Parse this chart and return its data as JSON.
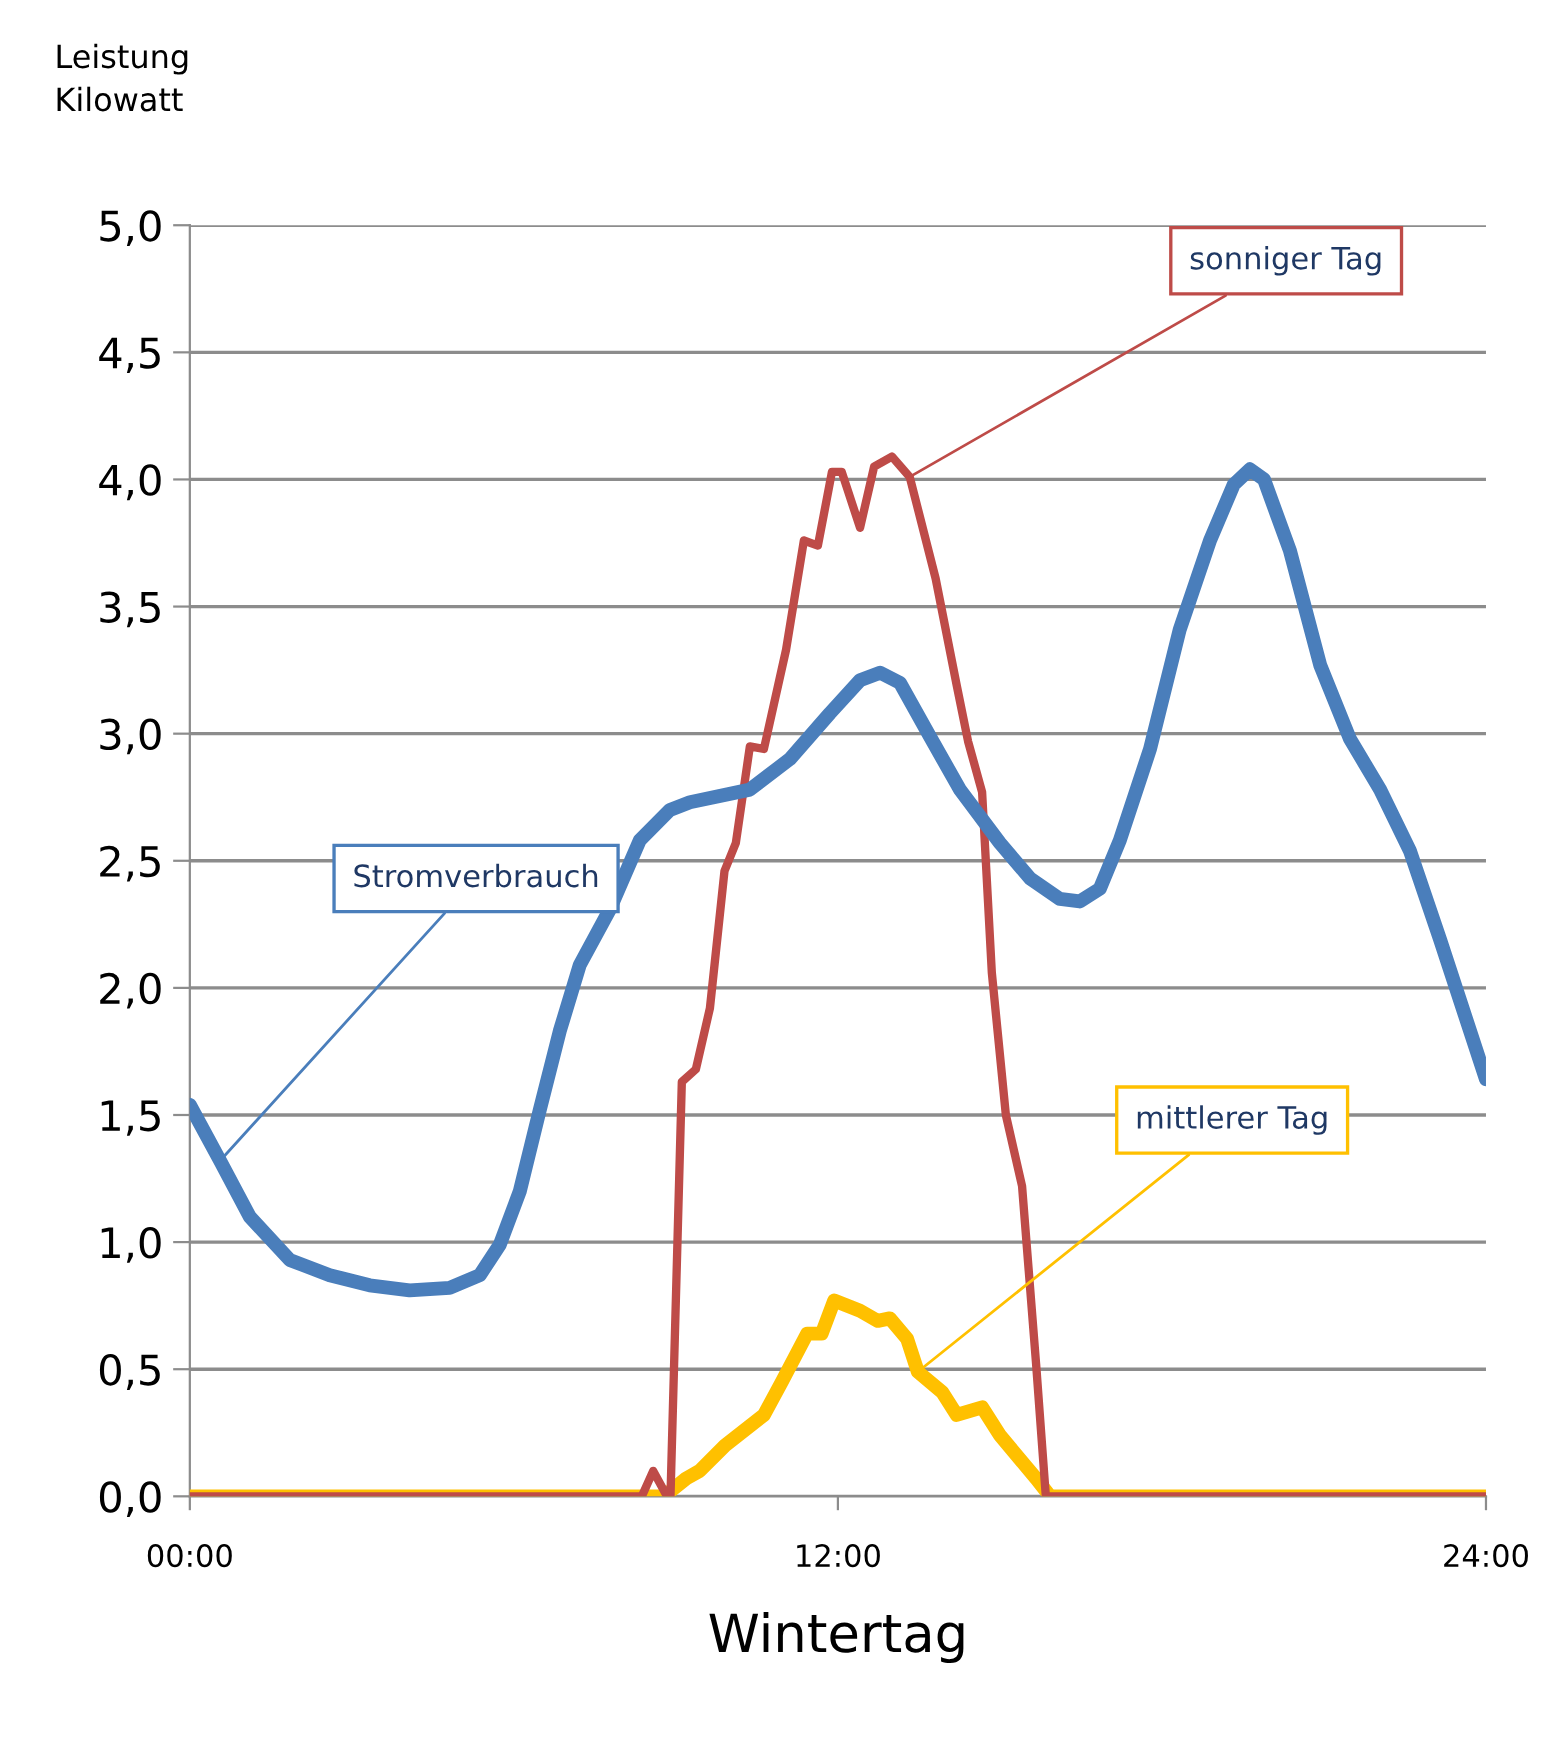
{
  "chart_data": {
    "type": "line",
    "xlabel": "Wintertag",
    "ylabel": "Leistung\nKilowatt",
    "xlim": [
      0,
      24
    ],
    "xticks": [
      {
        "value": 0,
        "label": "00:00"
      },
      {
        "value": 12,
        "label": "12:00"
      },
      {
        "value": 24,
        "label": "24:00"
      }
    ],
    "ylim": [
      0,
      5
    ],
    "yticks": [
      {
        "value": 0,
        "label": "0,0"
      },
      {
        "value": 0.5,
        "label": "0,5"
      },
      {
        "value": 1,
        "label": "1,0"
      },
      {
        "value": 1.5,
        "label": "1,5"
      },
      {
        "value": 2,
        "label": "2,0"
      },
      {
        "value": 2.5,
        "label": "2,5"
      },
      {
        "value": 3,
        "label": "3,0"
      },
      {
        "value": 3.5,
        "label": "3,5"
      },
      {
        "value": 4,
        "label": "4,0"
      },
      {
        "value": 4.5,
        "label": "4,5"
      },
      {
        "value": 5,
        "label": "5,0"
      }
    ],
    "grid": "y",
    "legend": false,
    "marker": "none",
    "line_style": "solid",
    "series": [
      {
        "name": "Stromverbrauch",
        "color": "#4a7ebb",
        "x": [
          0,
          0.56,
          1.11,
          1.85,
          2.59,
          3.33,
          4.07,
          4.81,
          5.37,
          5.74,
          6.11,
          6.48,
          6.85,
          7.22,
          7.78,
          8.33,
          8.89,
          9.26,
          10.37,
          11.11,
          11.85,
          12.41,
          12.78,
          13.15,
          13.7,
          14.26,
          15,
          15.56,
          16.11,
          16.48,
          16.85,
          17.22,
          17.78,
          18.33,
          18.89,
          19.33,
          19.63,
          19.89,
          20.37,
          20.93,
          21.48,
          22.04,
          22.59,
          23.15,
          24
        ],
        "values": [
          1.54,
          1.32,
          1.1,
          0.93,
          0.87,
          0.83,
          0.81,
          0.82,
          0.87,
          0.99,
          1.2,
          1.52,
          1.83,
          2.09,
          2.31,
          2.58,
          2.7,
          2.73,
          2.78,
          2.9,
          3.08,
          3.21,
          3.24,
          3.2,
          2.99,
          2.78,
          2.57,
          2.43,
          2.35,
          2.34,
          2.39,
          2.58,
          2.94,
          3.41,
          3.76,
          3.98,
          4.04,
          4.0,
          3.72,
          3.27,
          2.98,
          2.78,
          2.54,
          2.19,
          1.64
        ]
      },
      {
        "name": "sonniger Tag",
        "color": "#be4b48",
        "x": [
          0,
          8.37,
          8.58,
          8.81,
          8.9,
          9.11,
          9.37,
          9.63,
          9.9,
          10.11,
          10.37,
          10.63,
          11.04,
          11.37,
          11.63,
          11.89,
          12.07,
          12.41,
          12.67,
          13.0,
          13.33,
          13.81,
          14.2,
          14.41,
          14.67,
          14.85,
          15.11,
          15.41,
          15.67,
          15.85,
          24
        ],
        "values": [
          0,
          0,
          0.1,
          0.01,
          0,
          1.63,
          1.68,
          1.92,
          2.46,
          2.57,
          2.95,
          2.94,
          3.33,
          3.76,
          3.74,
          4.03,
          4.03,
          3.81,
          4.05,
          4.09,
          4.01,
          3.61,
          3.19,
          2.97,
          2.77,
          2.06,
          1.5,
          1.22,
          0.52,
          0,
          0
        ]
      },
      {
        "name": "mittlerer Tag",
        "color": "#ffc000",
        "x": [
          0,
          8.78,
          9.19,
          9.44,
          9.91,
          10.63,
          10.96,
          11.43,
          11.7,
          11.93,
          12.41,
          12.74,
          12.96,
          13.28,
          13.48,
          13.93,
          14.2,
          14.67,
          15.0,
          15.67,
          15.93,
          24
        ],
        "values": [
          0,
          0,
          0.07,
          0.1,
          0.2,
          0.32,
          0.45,
          0.64,
          0.64,
          0.77,
          0.73,
          0.69,
          0.7,
          0.62,
          0.49,
          0.41,
          0.32,
          0.35,
          0.24,
          0.07,
          0,
          0
        ]
      }
    ]
  }
}
